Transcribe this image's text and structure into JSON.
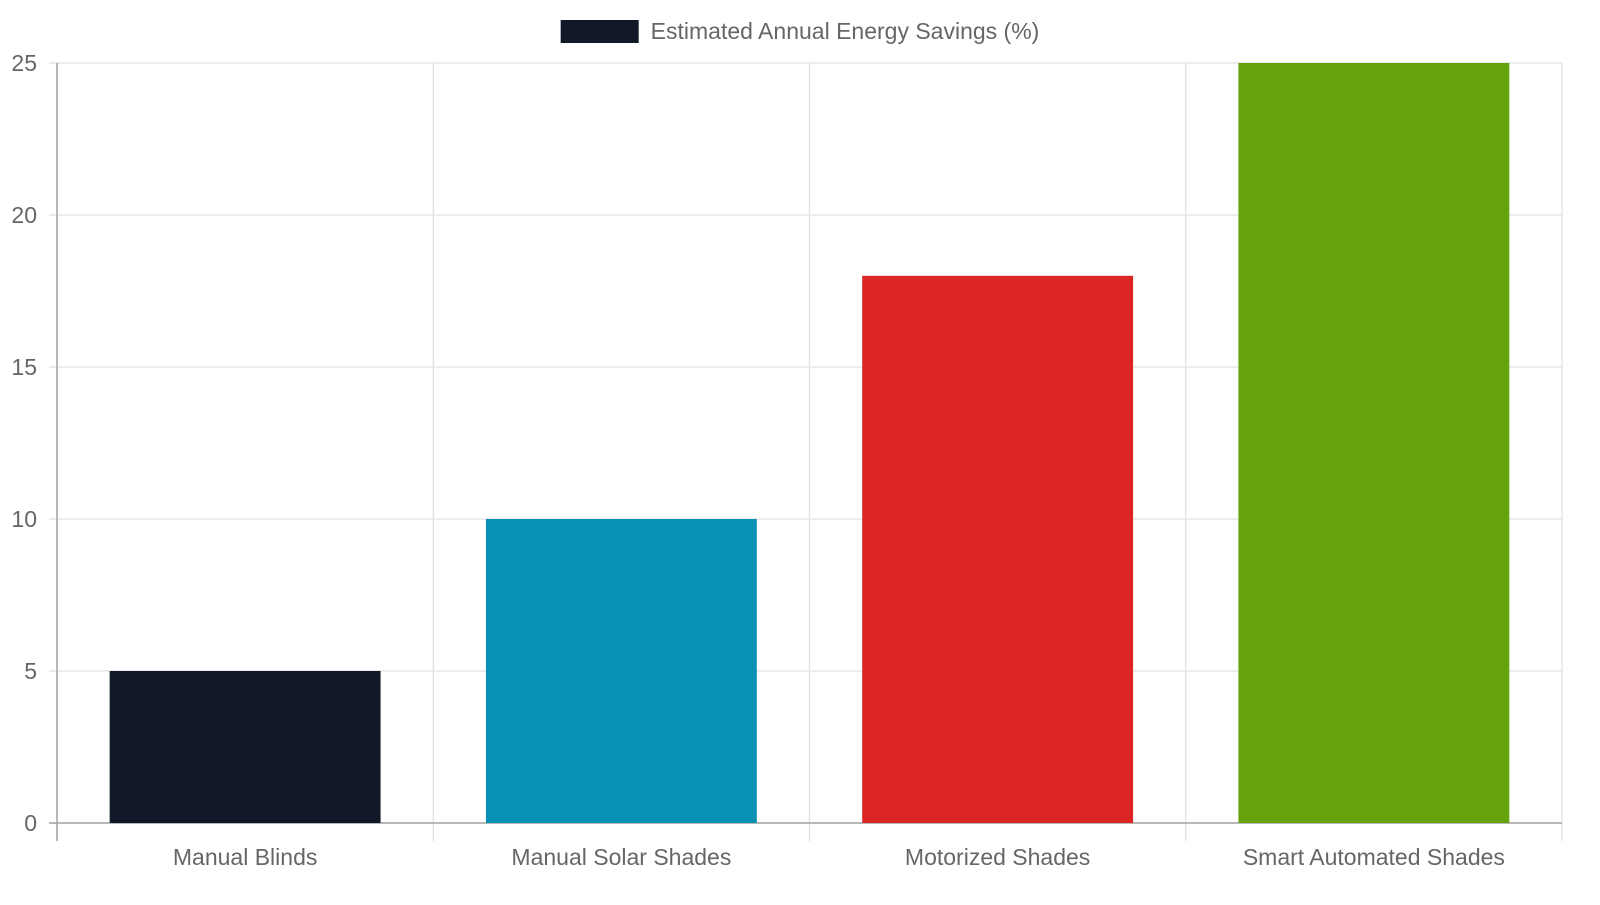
{
  "chart_data": {
    "type": "bar",
    "title": "",
    "xlabel": "",
    "ylabel": "",
    "categories": [
      "Manual Blinds",
      "Manual Solar Shades",
      "Motorized Shades",
      "Smart Automated Shades"
    ],
    "series": [
      {
        "name": "Estimated Annual Energy Savings (%)",
        "values": [
          5,
          10,
          18,
          25
        ]
      }
    ],
    "bar_colors": [
      "#111827",
      "#0891B2",
      "#DC2626",
      "#65A30D"
    ],
    "legend_swatch_color": "#111827",
    "ylim": [
      0,
      25
    ],
    "yticks": [
      0,
      5,
      10,
      15,
      20,
      25
    ],
    "grid": true,
    "legend_position": "top-center"
  }
}
